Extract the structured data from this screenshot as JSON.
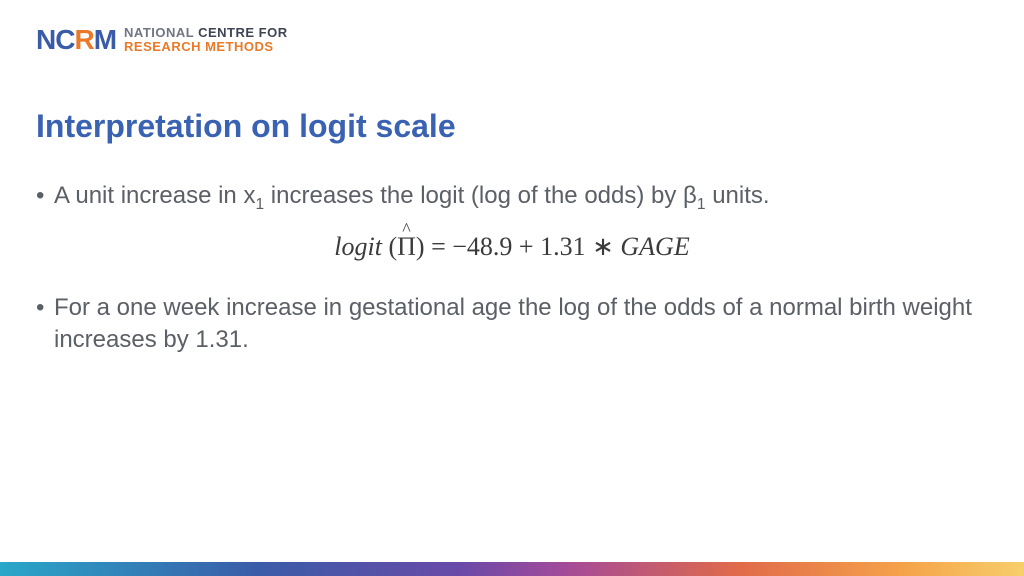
{
  "logo": {
    "mark_n": "N",
    "mark_c": "C",
    "mark_r": "R",
    "mark_m": "M",
    "line1_light": "NATIONAL ",
    "line1_bold": "CENTRE FOR",
    "line2": "RESEARCH METHODS"
  },
  "title": "Interpretation on logit scale",
  "bullets": {
    "b1_pre": "A unit increase in x",
    "b1_sub": "1",
    "b1_mid": " increases the logit (log of the odds) by β",
    "b1_sub2": "1",
    "b1_post": " units.",
    "b2": "For a one week increase in gestational age the log of the odds of a normal birth weight increases by 1.31."
  },
  "equation": {
    "logit": "logit",
    "lparen": " (",
    "pihat": "Π",
    "rparen": ") ",
    "eq": "= ",
    "intercept": "−48.9 ",
    "plus": "+ ",
    "coef": "1.31 ",
    "ast": "∗ ",
    "var": "GAGE"
  },
  "colors": {
    "title": "#3a62b3",
    "body": "#5b5f66",
    "logo_blue": "#3a5ca8",
    "logo_orange": "#e97a2a"
  }
}
